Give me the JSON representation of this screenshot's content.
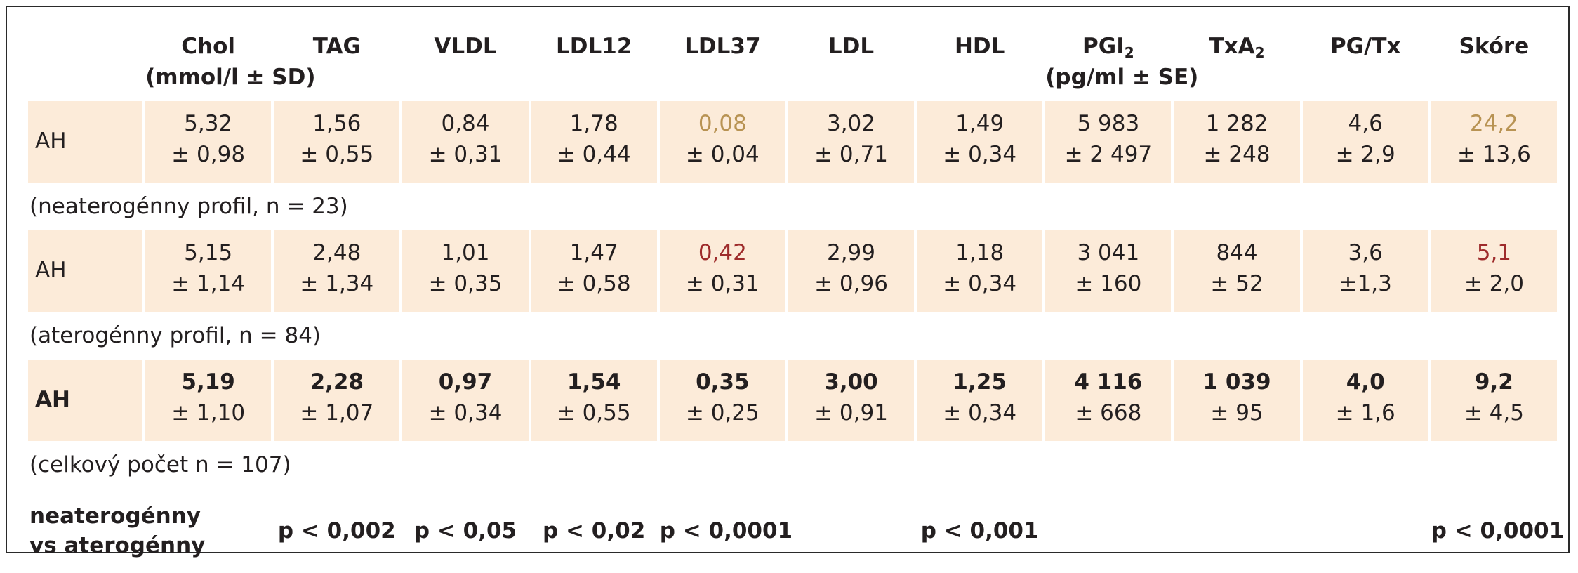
{
  "columns": [
    "Chol",
    "TAG",
    "VLDL",
    "LDL12",
    "LDL37",
    "LDL",
    "HDL",
    "PGI",
    "TxA",
    "PG/Tx",
    "Skóre"
  ],
  "subscripts": {
    "PGI": "2",
    "TxA": "2"
  },
  "units": {
    "chol": "(mmol/l ± SD)",
    "pgi": "(pg/ml ± SE)"
  },
  "accent_colors": {
    "low_highlight": "#b89353",
    "high_highlight": "#9e2b2b",
    "row_bg": "#fcebd9"
  },
  "rows": [
    {
      "label": "AH",
      "means": [
        "5,32",
        "1,56",
        "0,84",
        "1,78",
        "0,08",
        "3,02",
        "1,49",
        "5 983",
        "1 282",
        "4,6",
        "24,2"
      ],
      "sds": [
        "± 0,98",
        "± 0,55",
        "± 0,31",
        "± 0,44",
        "± 0,04",
        "± 0,71",
        "± 0,34",
        "± 2 497",
        "± 248",
        "± 2,9",
        "± 13,6"
      ],
      "note": "(neaterogénny profil, n = 23)"
    },
    {
      "label": "AH",
      "means": [
        "5,15",
        "2,48",
        "1,01",
        "1,47",
        "0,42",
        "2,99",
        "1,18",
        "3 041",
        "844",
        "3,6",
        "5,1"
      ],
      "sds": [
        "± 1,14",
        "± 1,34",
        "± 0,35",
        "± 0,58",
        "± 0,31",
        "± 0,96",
        "± 0,34",
        "± 160",
        "± 52",
        "±1,3",
        "± 2,0"
      ],
      "note": "(aterogénny profil, n = 84)"
    },
    {
      "label": "AH",
      "means": [
        "5,19",
        "2,28",
        "0,97",
        "1,54",
        "0,35",
        "3,00",
        "1,25",
        "4 116",
        "1 039",
        "4,0",
        "9,2"
      ],
      "sds": [
        "± 1,10",
        "± 1,07",
        "± 0,34",
        "± 0,55",
        "± 0,25",
        "± 0,91",
        "± 0,34",
        "± 668",
        "± 95",
        "± 1,6",
        "± 4,5"
      ],
      "note": "(celkový počet n = 107)"
    }
  ],
  "comparison": {
    "label_line1": "neaterogénny",
    "label_line2": "vs aterogénny",
    "pvalues": [
      "",
      "p < 0,002",
      "p < 0,05",
      "p < 0,02",
      "p < 0,0001",
      "",
      "p < 0,001",
      "",
      "",
      "",
      "p < 0,0001"
    ]
  }
}
